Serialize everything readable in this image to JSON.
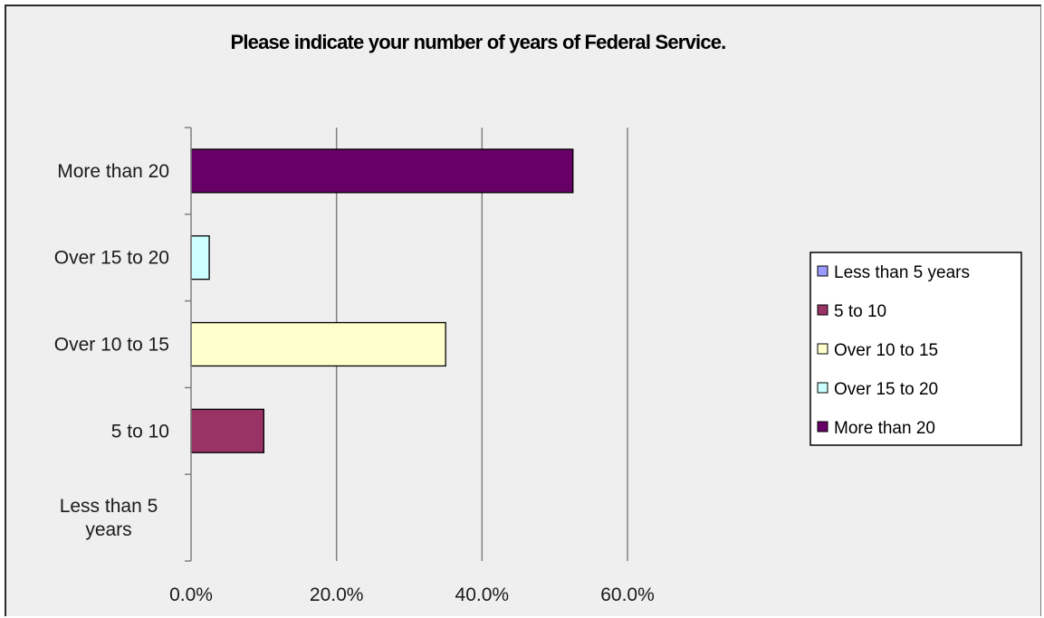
{
  "chart_data": {
    "type": "bar",
    "orientation": "horizontal",
    "title": "Please indicate your number of years of Federal Service.",
    "categories": [
      "Less than 5 years",
      "5  to 10",
      "Over 10 to 15",
      "Over 15 to 20",
      "More than 20"
    ],
    "category_label_lines": [
      [
        "Less than 5",
        "years"
      ],
      [
        "5  to 10"
      ],
      [
        "Over 10 to 15"
      ],
      [
        "Over 15 to 20"
      ],
      [
        "More than 20"
      ]
    ],
    "values": [
      0.0,
      10.0,
      35.0,
      2.5,
      52.5
    ],
    "colors": [
      "#9999ff",
      "#993366",
      "#ffffcc",
      "#ccffff",
      "#660066"
    ],
    "xlim": [
      0,
      60
    ],
    "x_ticks": [
      0,
      20,
      40,
      60
    ],
    "x_tick_labels": [
      "0.0%",
      "20.0%",
      "40.0%",
      "60.0%"
    ],
    "grid": "vertical",
    "legend": {
      "placement": "right",
      "entries": [
        "Less than 5 years",
        "5  to 10",
        "Over 10 to 15",
        "Over 15 to 20",
        "More than 20"
      ]
    },
    "xlabel": "",
    "ylabel": ""
  }
}
